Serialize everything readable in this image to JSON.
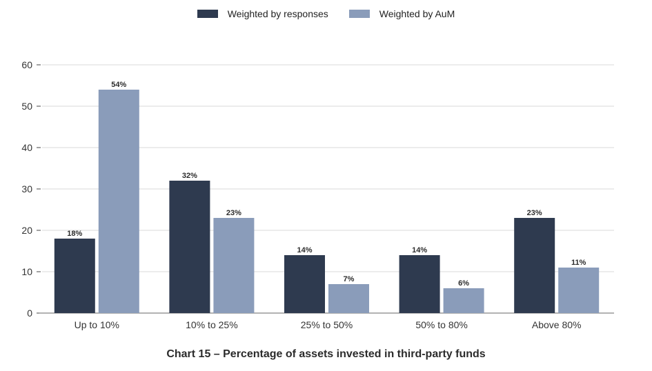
{
  "chart_data": {
    "type": "bar",
    "title": "Chart 15 – Percentage of assets invested in third-party funds",
    "categories": [
      "Up to 10%",
      "10% to 25%",
      "25% to 50%",
      "50% to 80%",
      "Above 80%"
    ],
    "series": [
      {
        "name": "Weighted by responses",
        "color": "#2e3a4f",
        "values": [
          18,
          32,
          14,
          14,
          23
        ],
        "labels": [
          "18%",
          "32%",
          "14%",
          "14%",
          "23%"
        ]
      },
      {
        "name": "Weighted by AuM",
        "color": "#8a9cba",
        "values": [
          54,
          23,
          7,
          6,
          11
        ],
        "labels": [
          "54%",
          "23%",
          "7%",
          "6%",
          "11%"
        ]
      }
    ],
    "ylim": [
      0,
      60
    ],
    "yticks": [
      0,
      10,
      20,
      30,
      40,
      50,
      60
    ],
    "grid": true,
    "legend": "top-center"
  }
}
